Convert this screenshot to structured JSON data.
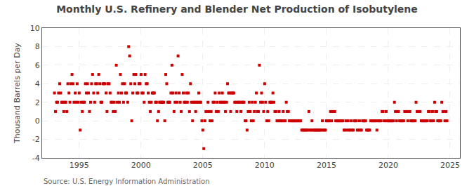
{
  "chart_data": {
    "type": "scatter",
    "title": "Monthly U.S. Refinery and Blender Net Production of Isobutylene",
    "ylabel": "Thousand Barrels per Day",
    "annotations": [
      "Source: U.S. Energy Information Administration"
    ],
    "color": "#cc0000",
    "marker": "square",
    "grid": true,
    "xlim": [
      1992.0,
      2025.8
    ],
    "ylim": [
      -4,
      10
    ],
    "xticks": [
      1995,
      2000,
      2005,
      2010,
      2015,
      2020,
      2025
    ],
    "yticks": [
      -4,
      -2,
      0,
      2,
      4,
      6,
      8,
      10
    ],
    "x": [
      1993.0,
      1993.08,
      1993.17,
      1993.25,
      1993.33,
      1993.42,
      1993.5,
      1993.58,
      1993.67,
      1993.75,
      1993.83,
      1993.92,
      1994.0,
      1994.08,
      1994.17,
      1994.25,
      1994.33,
      1994.42,
      1994.5,
      1994.58,
      1994.67,
      1994.75,
      1994.83,
      1994.92,
      1995.0,
      1995.08,
      1995.17,
      1995.25,
      1995.33,
      1995.42,
      1995.5,
      1995.58,
      1995.67,
      1995.75,
      1995.83,
      1995.92,
      1996.0,
      1996.08,
      1996.17,
      1996.25,
      1996.33,
      1996.42,
      1996.5,
      1996.58,
      1996.67,
      1996.75,
      1996.83,
      1996.92,
      1997.0,
      1997.08,
      1997.17,
      1997.25,
      1997.33,
      1997.42,
      1997.5,
      1997.58,
      1997.67,
      1997.75,
      1997.83,
      1997.92,
      1998.0,
      1998.08,
      1998.17,
      1998.25,
      1998.33,
      1998.42,
      1998.5,
      1998.58,
      1998.67,
      1998.75,
      1998.83,
      1998.92,
      1999.0,
      1999.08,
      1999.17,
      1999.25,
      1999.33,
      1999.42,
      1999.5,
      1999.58,
      1999.67,
      1999.75,
      1999.83,
      1999.92,
      2000.0,
      2000.08,
      2000.17,
      2000.25,
      2000.33,
      2000.42,
      2000.5,
      2000.58,
      2000.67,
      2000.75,
      2000.83,
      2000.92,
      2001.0,
      2001.08,
      2001.17,
      2001.25,
      2001.33,
      2001.42,
      2001.5,
      2001.58,
      2001.67,
      2001.75,
      2001.83,
      2001.92,
      2002.0,
      2002.08,
      2002.17,
      2002.25,
      2002.33,
      2002.42,
      2002.5,
      2002.58,
      2002.67,
      2002.75,
      2002.83,
      2002.92,
      2003.0,
      2003.08,
      2003.17,
      2003.25,
      2003.33,
      2003.42,
      2003.5,
      2003.58,
      2003.67,
      2003.75,
      2003.83,
      2003.92,
      2004.0,
      2004.08,
      2004.17,
      2004.25,
      2004.33,
      2004.42,
      2004.5,
      2004.58,
      2004.67,
      2004.75,
      2004.83,
      2004.92,
      2005.0,
      2005.08,
      2005.17,
      2005.25,
      2005.33,
      2005.42,
      2005.5,
      2005.58,
      2005.67,
      2005.75,
      2005.83,
      2005.92,
      2006.0,
      2006.08,
      2006.17,
      2006.25,
      2006.33,
      2006.42,
      2006.5,
      2006.58,
      2006.67,
      2006.75,
      2006.83,
      2006.92,
      2007.0,
      2007.08,
      2007.17,
      2007.25,
      2007.33,
      2007.42,
      2007.5,
      2007.58,
      2007.67,
      2007.75,
      2007.83,
      2007.92,
      2008.0,
      2008.08,
      2008.17,
      2008.25,
      2008.33,
      2008.42,
      2008.5,
      2008.58,
      2008.67,
      2008.75,
      2008.83,
      2008.92,
      2009.0,
      2009.08,
      2009.17,
      2009.25,
      2009.33,
      2009.42,
      2009.5,
      2009.58,
      2009.67,
      2009.75,
      2009.83,
      2009.92,
      2010.0,
      2010.08,
      2010.17,
      2010.25,
      2010.33,
      2010.42,
      2010.5,
      2010.58,
      2010.67,
      2010.75,
      2010.83,
      2010.92,
      2011.0,
      2011.08,
      2011.17,
      2011.25,
      2011.33,
      2011.42,
      2011.5,
      2011.58,
      2011.67,
      2011.75,
      2011.83,
      2011.92,
      2012.0,
      2012.08,
      2012.17,
      2012.25,
      2012.33,
      2012.42,
      2012.5,
      2012.58,
      2012.67,
      2012.75,
      2012.83,
      2012.92,
      2013.0,
      2013.08,
      2013.17,
      2013.25,
      2013.33,
      2013.42,
      2013.5,
      2013.58,
      2013.67,
      2013.75,
      2013.83,
      2013.92,
      2014.0,
      2014.08,
      2014.17,
      2014.25,
      2014.33,
      2014.42,
      2014.5,
      2014.58,
      2014.67,
      2014.75,
      2014.83,
      2014.92,
      2015.0,
      2015.08,
      2015.17,
      2015.25,
      2015.33,
      2015.42,
      2015.5,
      2015.58,
      2015.67,
      2015.75,
      2015.83,
      2015.92,
      2016.0,
      2016.08,
      2016.17,
      2016.25,
      2016.33,
      2016.42,
      2016.5,
      2016.58,
      2016.67,
      2016.75,
      2016.83,
      2016.92,
      2017.0,
      2017.08,
      2017.17,
      2017.25,
      2017.33,
      2017.42,
      2017.5,
      2017.58,
      2017.67,
      2017.75,
      2017.83,
      2017.92,
      2018.0,
      2018.08,
      2018.17,
      2018.25,
      2018.33,
      2018.42,
      2018.5,
      2018.58,
      2018.67,
      2018.75,
      2018.83,
      2018.92,
      2019.0,
      2019.08,
      2019.17,
      2019.25,
      2019.33,
      2019.42,
      2019.5,
      2019.58,
      2019.67,
      2019.75,
      2019.83,
      2019.92,
      2020.0,
      2020.08,
      2020.17,
      2020.25,
      2020.33,
      2020.42,
      2020.5,
      2020.58,
      2020.67,
      2020.75,
      2020.83,
      2020.92,
      2021.0,
      2021.08,
      2021.17,
      2021.25,
      2021.33,
      2021.42,
      2021.5,
      2021.58,
      2021.67,
      2021.75,
      2021.83,
      2021.92,
      2022.0,
      2022.08,
      2022.17,
      2022.25,
      2022.33,
      2022.42,
      2022.5,
      2022.58,
      2022.67,
      2022.75,
      2022.83,
      2022.92,
      2023.0,
      2023.08,
      2023.17,
      2023.25,
      2023.33,
      2023.42,
      2023.5,
      2023.58,
      2023.67,
      2023.75,
      2023.83,
      2023.92,
      2024.0,
      2024.08,
      2024.17,
      2024.25,
      2024.33,
      2024.42,
      2024.5,
      2024.58,
      2024.67,
      2024.75
    ],
    "values": [
      3,
      1,
      2,
      2,
      3,
      4,
      3,
      2,
      2,
      1,
      2,
      2,
      1,
      4,
      3,
      2,
      4,
      5,
      4,
      2,
      3,
      2,
      4,
      2,
      3,
      -1,
      2,
      1,
      2,
      2,
      4,
      3,
      4,
      3,
      1,
      2,
      4,
      5,
      3,
      2,
      4,
      4,
      3,
      5,
      4,
      2,
      2,
      4,
      4,
      4,
      3,
      1,
      4,
      4,
      3,
      2,
      2,
      1,
      2,
      1,
      6,
      2,
      3,
      2,
      5,
      3,
      4,
      2,
      4,
      3,
      3,
      2,
      8,
      7,
      4,
      0,
      3,
      5,
      4,
      5,
      3,
      3,
      4,
      4,
      5,
      3,
      3,
      2,
      5,
      4,
      4,
      3,
      2,
      1,
      2,
      3,
      3,
      3,
      2,
      2,
      0,
      1,
      2,
      2,
      2,
      2,
      2,
      0,
      5,
      4,
      2,
      2,
      2,
      3,
      6,
      3,
      1,
      2,
      3,
      2,
      7,
      3,
      2,
      1,
      5,
      3,
      2,
      2,
      3,
      2,
      3,
      1,
      4,
      2,
      0,
      2,
      2,
      1,
      2,
      2,
      3,
      2,
      2,
      0,
      -1,
      -3,
      0,
      1,
      1,
      2,
      1,
      0,
      1,
      0,
      2,
      2,
      3,
      1,
      2,
      1,
      3,
      2,
      2,
      3,
      2,
      2,
      1,
      2,
      4,
      3,
      3,
      1,
      3,
      3,
      3,
      2,
      2,
      1,
      2,
      2,
      2,
      1,
      2,
      2,
      2,
      0,
      0,
      -1,
      1,
      2,
      1,
      0,
      2,
      0,
      1,
      2,
      3,
      1,
      1,
      6,
      2,
      3,
      2,
      1,
      4,
      2,
      0,
      1,
      0,
      2,
      2,
      2,
      3,
      2,
      1,
      1,
      0,
      0,
      1,
      0,
      0,
      0,
      1,
      0,
      0,
      2,
      1,
      1,
      0,
      0,
      0,
      0,
      0,
      0,
      0,
      0,
      0,
      0,
      0,
      0,
      -1,
      -1,
      -1,
      -1,
      -1,
      -1,
      -1,
      1,
      -1,
      -1,
      0,
      -1,
      -1,
      -1,
      -1,
      -1,
      -1,
      -1,
      -1,
      -1,
      0,
      -1,
      -1,
      -1,
      0,
      0,
      0,
      0,
      1,
      0,
      1,
      1,
      1,
      0,
      0,
      0,
      0,
      0,
      0,
      0,
      0,
      -1,
      -1,
      0,
      -1,
      0,
      -1,
      -1,
      0,
      -1,
      -1,
      0,
      0,
      0,
      -1,
      -1,
      0,
      -1,
      -1,
      0,
      0,
      0,
      0,
      -1,
      -1,
      -1,
      -1,
      0,
      0,
      0,
      0,
      0,
      0,
      -1,
      0,
      0,
      0,
      0,
      1,
      1,
      0,
      0,
      1,
      0,
      0,
      0,
      0,
      0,
      0,
      0,
      2,
      1,
      0,
      1,
      1,
      0,
      0,
      0,
      0,
      0,
      1,
      1,
      1,
      0,
      1,
      1,
      0,
      0,
      0,
      0,
      0,
      2,
      1,
      1,
      1,
      1,
      0,
      0,
      0,
      0,
      0,
      0,
      0,
      1,
      1,
      0,
      0,
      1,
      0,
      2,
      1,
      1,
      0,
      0,
      0,
      0,
      2,
      1,
      1,
      0,
      1,
      0
    ]
  }
}
